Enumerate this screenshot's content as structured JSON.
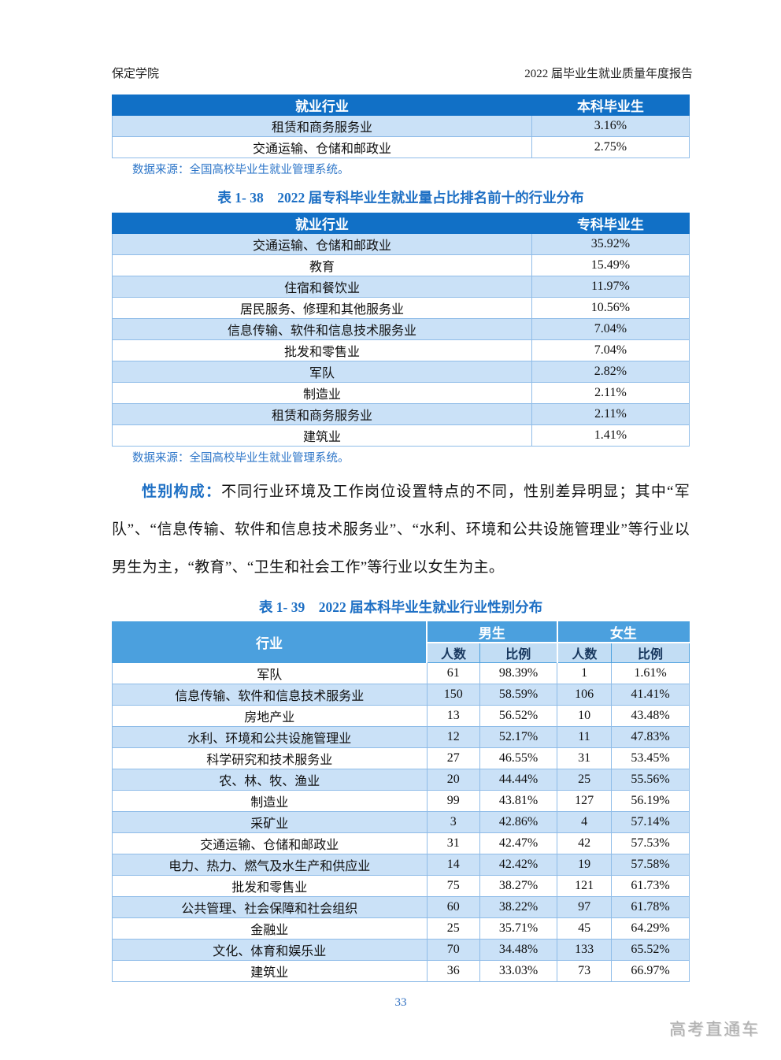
{
  "page": {
    "header_left": "保定学院",
    "header_right": "2022 届毕业生就业质量年度报告",
    "page_number": "33",
    "watermark": "高考直通车"
  },
  "colors": {
    "header_dark_blue": "#1170C6",
    "header_mid_blue": "#4BA0DE",
    "subheader_light_blue": "#C2DDF4",
    "row_light_blue": "#CAE1F7",
    "grid_line_blue": "#8FBCE8",
    "caption_blue": "#1D6FC4",
    "source_blue": "#2C75C8",
    "watermark_gray": "#B0B0B0"
  },
  "table_top": {
    "columns": [
      "就业行业",
      "本科毕业生"
    ],
    "rows": [
      [
        "租赁和商务服务业",
        "3.16%"
      ],
      [
        "交通运输、仓储和邮政业",
        "2.75%"
      ]
    ],
    "source": "数据来源：全国高校毕业生就业管理系统。"
  },
  "table_138": {
    "caption": "表 1- 38　2022 届专科毕业生就业量占比排名前十的行业分布",
    "columns": [
      "就业行业",
      "专科毕业生"
    ],
    "rows": [
      [
        "交通运输、仓储和邮政业",
        "35.92%"
      ],
      [
        "教育",
        "15.49%"
      ],
      [
        "住宿和餐饮业",
        "11.97%"
      ],
      [
        "居民服务、修理和其他服务业",
        "10.56%"
      ],
      [
        "信息传输、软件和信息技术服务业",
        "7.04%"
      ],
      [
        "批发和零售业",
        "7.04%"
      ],
      [
        "军队",
        "2.82%"
      ],
      [
        "制造业",
        "2.11%"
      ],
      [
        "租赁和商务服务业",
        "2.11%"
      ],
      [
        "建筑业",
        "1.41%"
      ]
    ],
    "source": "数据来源：全国高校毕业生就业管理系统。"
  },
  "paragraph": {
    "lead": "性别构成：",
    "body": "不同行业环境及工作岗位设置特点的不同，性别差异明显；其中“军队”、“信息传输、软件和信息技术服务业”、“水利、环境和公共设施管理业”等行业以男生为主，“教育”、“卫生和社会工作”等行业以女生为主。"
  },
  "table_139": {
    "caption": "表 1- 39　2022 届本科毕业生就业行业性别分布",
    "col_industry": "行业",
    "group_male": "男生",
    "group_female": "女生",
    "subheaders": [
      "人数",
      "比例",
      "人数",
      "比例"
    ],
    "rows": [
      [
        "军队",
        "61",
        "98.39%",
        "1",
        "1.61%"
      ],
      [
        "信息传输、软件和信息技术服务业",
        "150",
        "58.59%",
        "106",
        "41.41%"
      ],
      [
        "房地产业",
        "13",
        "56.52%",
        "10",
        "43.48%"
      ],
      [
        "水利、环境和公共设施管理业",
        "12",
        "52.17%",
        "11",
        "47.83%"
      ],
      [
        "科学研究和技术服务业",
        "27",
        "46.55%",
        "31",
        "53.45%"
      ],
      [
        "农、林、牧、渔业",
        "20",
        "44.44%",
        "25",
        "55.56%"
      ],
      [
        "制造业",
        "99",
        "43.81%",
        "127",
        "56.19%"
      ],
      [
        "采矿业",
        "3",
        "42.86%",
        "4",
        "57.14%"
      ],
      [
        "交通运输、仓储和邮政业",
        "31",
        "42.47%",
        "42",
        "57.53%"
      ],
      [
        "电力、热力、燃气及水生产和供应业",
        "14",
        "42.42%",
        "19",
        "57.58%"
      ],
      [
        "批发和零售业",
        "75",
        "38.27%",
        "121",
        "61.73%"
      ],
      [
        "公共管理、社会保障和社会组织",
        "60",
        "38.22%",
        "97",
        "61.78%"
      ],
      [
        "金融业",
        "25",
        "35.71%",
        "45",
        "64.29%"
      ],
      [
        "文化、体育和娱乐业",
        "70",
        "34.48%",
        "133",
        "65.52%"
      ],
      [
        "建筑业",
        "36",
        "33.03%",
        "73",
        "66.97%"
      ]
    ]
  }
}
